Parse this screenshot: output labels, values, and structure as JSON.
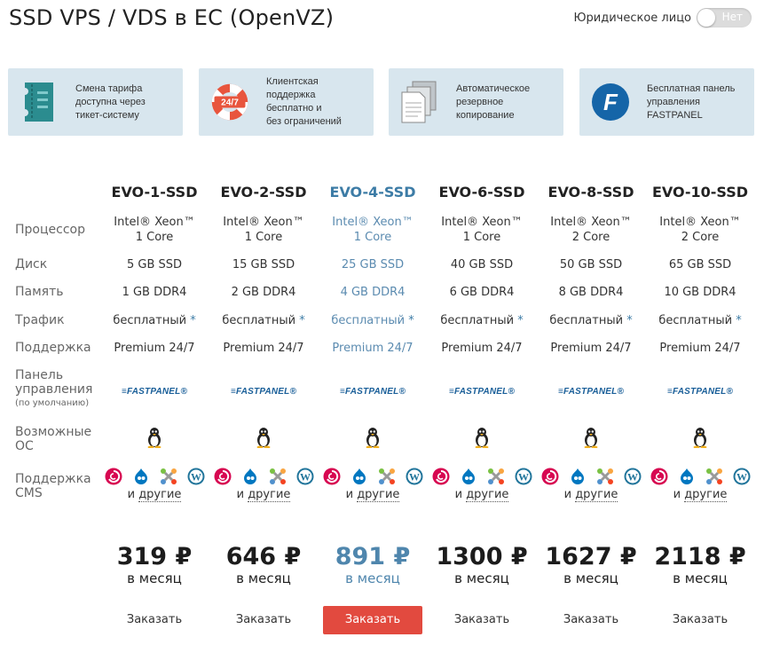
{
  "page_title": "SSD VPS / VDS в ЕС (OpenVZ)",
  "legal_entity": {
    "label": "Юридическое лицо",
    "toggle_value": "Нет"
  },
  "features": [
    {
      "icon": "ticket-icon",
      "text": [
        "Смена тарифа",
        "доступна через",
        "тикет-систему"
      ]
    },
    {
      "icon": "lifebuoy-24-7-icon",
      "badge": "24/7",
      "text": [
        "Клиентская",
        "поддержка",
        "бесплатно и",
        "без ограничений"
      ]
    },
    {
      "icon": "document-copy-icon",
      "text": [
        "Автоматическое",
        "резервное",
        "копирование"
      ]
    },
    {
      "icon": "fastpanel-logo-icon",
      "badge": "F",
      "text": [
        "Бесплатная панель",
        "управления",
        "FASTPANEL"
      ]
    }
  ],
  "row_labels": {
    "cpu": "Процессор",
    "disk": "Диск",
    "ram": "Память",
    "traffic": "Трафик",
    "support": "Поддержка",
    "panel": [
      "Панель",
      "управления"
    ],
    "panel_note": "(по умолчанию)",
    "os": [
      "Возможные",
      "ОС"
    ],
    "cms": [
      "Поддержка",
      "CMS"
    ]
  },
  "plans": [
    {
      "name": "EVO-1-SSD",
      "cpu": [
        "Intel® Xeon™",
        "1 Core"
      ],
      "disk": "5 GB SSD",
      "ram": "1 GB DDR4",
      "traffic": "бесплатный",
      "support": "Premium 24/7",
      "panel": "FASTPANEL",
      "price": "319 ₽",
      "period": "в месяц",
      "order": "Заказать"
    },
    {
      "name": "EVO-2-SSD",
      "cpu": [
        "Intel® Xeon™",
        "1 Core"
      ],
      "disk": "15 GB SSD",
      "ram": "2 GB DDR4",
      "traffic": "бесплатный",
      "support": "Premium 24/7",
      "panel": "FASTPANEL",
      "price": "646 ₽",
      "period": "в месяц",
      "order": "Заказать"
    },
    {
      "name": "EVO-4-SSD",
      "cpu": [
        "Intel® Xeon™",
        "1 Core"
      ],
      "disk": "25 GB SSD",
      "ram": "4 GB DDR4",
      "traffic": "бесплатный",
      "support": "Premium 24/7",
      "panel": "FASTPANEL",
      "price": "891 ₽",
      "period": "в месяц",
      "order": "Заказать",
      "featured": true
    },
    {
      "name": "EVO-6-SSD",
      "cpu": [
        "Intel® Xeon™",
        "1 Core"
      ],
      "disk": "40 GB SSD",
      "ram": "6 GB DDR4",
      "traffic": "бесплатный",
      "support": "Premium 24/7",
      "panel": "FASTPANEL",
      "price": "1300 ₽",
      "period": "в месяц",
      "order": "Заказать"
    },
    {
      "name": "EVO-8-SSD",
      "cpu": [
        "Intel® Xeon™",
        "2 Core"
      ],
      "disk": "50 GB SSD",
      "ram": "8 GB DDR4",
      "traffic": "бесплатный",
      "support": "Premium 24/7",
      "panel": "FASTPANEL",
      "price": "1627 ₽",
      "period": "в месяц",
      "order": "Заказать"
    },
    {
      "name": "EVO-10-SSD",
      "cpu": [
        "Intel® Xeon™",
        "2 Core"
      ],
      "disk": "65 GB SSD",
      "ram": "10 GB DDR4",
      "traffic": "бесплатный",
      "support": "Premium 24/7",
      "panel": "FASTPANEL",
      "price": "2118 ₽",
      "period": "в месяц",
      "order": "Заказать"
    }
  ],
  "traffic_mark": "*",
  "cms_other": {
    "and": "и",
    "link": "другие"
  },
  "icons": {
    "os": "linux-penguin-icon",
    "cms": [
      "debian-icon",
      "drupal-icon",
      "joomla-icon",
      "wordpress-icon"
    ]
  },
  "colors": {
    "accent": "#3d7ca6",
    "order_highlight": "#e24a3f",
    "feature_bg": "#d8e6ee",
    "fastpanel": "#1a5f99"
  }
}
